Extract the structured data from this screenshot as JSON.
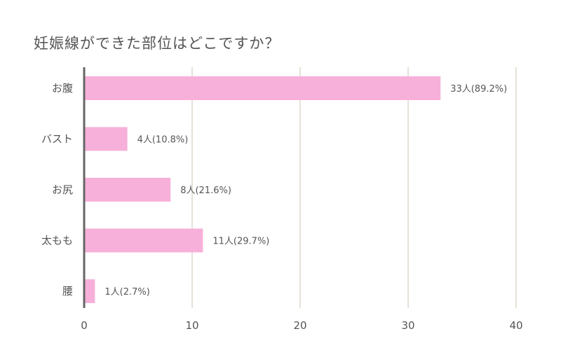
{
  "chart_data": {
    "type": "bar",
    "orientation": "horizontal",
    "title": "妊娠線ができた部位はどこですか？",
    "categories": [
      "お腹",
      "バスト",
      "お尻",
      "太もも",
      "腰"
    ],
    "values": [
      33,
      4,
      8,
      11,
      1
    ],
    "data_labels": [
      "33人(89.2%)",
      "4人(10.8%)",
      "8人(21.6%)",
      "11人(29.7%)",
      "1人(2.7%)"
    ],
    "xlim": [
      0,
      40
    ],
    "xticks": [
      0,
      10,
      20,
      30,
      40
    ],
    "xlabel": "",
    "ylabel": "",
    "grid": true,
    "legend": "none",
    "colors": {
      "bar": "#f7b0da",
      "grid": "#ddd9cc",
      "axis": "#666666",
      "text": "#555555"
    }
  }
}
